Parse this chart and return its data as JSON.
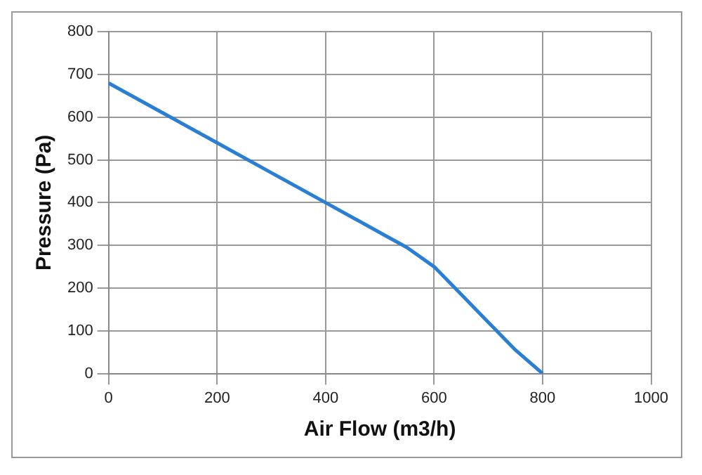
{
  "chart_data": {
    "type": "line",
    "xlabel": "Air Flow (m3/h)",
    "ylabel": "Pressure (Pa)",
    "x": [
      0,
      100,
      200,
      300,
      400,
      500,
      550,
      600,
      650,
      700,
      750,
      800
    ],
    "series": [
      {
        "color": "#2a7fd4",
        "values": [
          680,
          610,
          540,
          470,
          400,
          330,
          295,
          250,
          185,
          120,
          55,
          0
        ]
      }
    ],
    "xlim": [
      0,
      1000
    ],
    "xticks": [
      0,
      200,
      400,
      600,
      800,
      1000
    ],
    "ylim": [
      0,
      800
    ],
    "yticks": [
      0,
      100,
      200,
      300,
      400,
      500,
      600,
      700,
      800
    ],
    "grid": true,
    "legend": false,
    "marker": "none",
    "line_style": "solid"
  }
}
